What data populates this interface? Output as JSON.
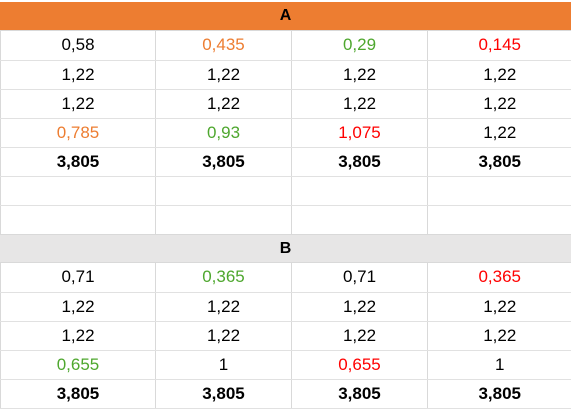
{
  "colors": {
    "header_a_fill": "#ed7d31",
    "header_b_fill": "#e7e6e6",
    "orange": "#ed7d31",
    "green": "#4ea72e",
    "red": "#ff0000",
    "black": "#000000"
  },
  "section_a": {
    "title": "A",
    "rows": [
      [
        {
          "v": "0,58",
          "c": "black"
        },
        {
          "v": "0,435",
          "c": "orange"
        },
        {
          "v": "0,29",
          "c": "green"
        },
        {
          "v": "0,145",
          "c": "red"
        }
      ],
      [
        {
          "v": "1,22",
          "c": "black"
        },
        {
          "v": "1,22",
          "c": "black"
        },
        {
          "v": "1,22",
          "c": "black"
        },
        {
          "v": "1,22",
          "c": "black"
        }
      ],
      [
        {
          "v": "1,22",
          "c": "black"
        },
        {
          "v": "1,22",
          "c": "black"
        },
        {
          "v": "1,22",
          "c": "black"
        },
        {
          "v": "1,22",
          "c": "black"
        }
      ],
      [
        {
          "v": "0,785",
          "c": "orange"
        },
        {
          "v": "0,93",
          "c": "green"
        },
        {
          "v": "1,075",
          "c": "red"
        },
        {
          "v": "1,22",
          "c": "black"
        }
      ]
    ],
    "totals": [
      "3,805",
      "3,805",
      "3,805",
      "3,805"
    ]
  },
  "section_b": {
    "title": "B",
    "rows": [
      [
        {
          "v": "0,71",
          "c": "black"
        },
        {
          "v": "0,365",
          "c": "green"
        },
        {
          "v": "0,71",
          "c": "black"
        },
        {
          "v": "0,365",
          "c": "red"
        }
      ],
      [
        {
          "v": "1,22",
          "c": "black"
        },
        {
          "v": "1,22",
          "c": "black"
        },
        {
          "v": "1,22",
          "c": "black"
        },
        {
          "v": "1,22",
          "c": "black"
        }
      ],
      [
        {
          "v": "1,22",
          "c": "black"
        },
        {
          "v": "1,22",
          "c": "black"
        },
        {
          "v": "1,22",
          "c": "black"
        },
        {
          "v": "1,22",
          "c": "black"
        }
      ],
      [
        {
          "v": "0,655",
          "c": "green"
        },
        {
          "v": "1",
          "c": "black"
        },
        {
          "v": "0,655",
          "c": "red"
        },
        {
          "v": "1",
          "c": "black"
        }
      ]
    ],
    "totals": [
      "3,805",
      "3,805",
      "3,805",
      "3,805"
    ]
  }
}
